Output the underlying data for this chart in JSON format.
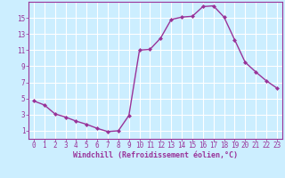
{
  "x": [
    0,
    1,
    2,
    3,
    4,
    5,
    6,
    7,
    8,
    9,
    10,
    11,
    12,
    13,
    14,
    15,
    16,
    17,
    18,
    19,
    20,
    21,
    22,
    23
  ],
  "y": [
    4.7,
    4.2,
    3.1,
    2.7,
    2.2,
    1.8,
    1.3,
    0.9,
    1.0,
    2.9,
    11.0,
    11.1,
    12.5,
    14.8,
    15.1,
    15.2,
    16.4,
    16.5,
    15.1,
    12.3,
    9.5,
    8.3,
    7.2,
    6.3
  ],
  "line_color": "#993399",
  "bg_color": "#cceeff",
  "grid_color": "#aaddcc",
  "xlabel": "Windchill (Refroidissement éolien,°C)",
  "xlabel_color": "#993399",
  "tick_color": "#993399",
  "spine_color": "#993399",
  "ylim": [
    0,
    17
  ],
  "yticks": [
    1,
    3,
    5,
    7,
    9,
    11,
    13,
    15
  ],
  "xlim": [
    -0.5,
    23.5
  ],
  "xticks": [
    0,
    1,
    2,
    3,
    4,
    5,
    6,
    7,
    8,
    9,
    10,
    11,
    12,
    13,
    14,
    15,
    16,
    17,
    18,
    19,
    20,
    21,
    22,
    23
  ],
  "tick_fontsize": 5.5,
  "xlabel_fontsize": 6.0
}
